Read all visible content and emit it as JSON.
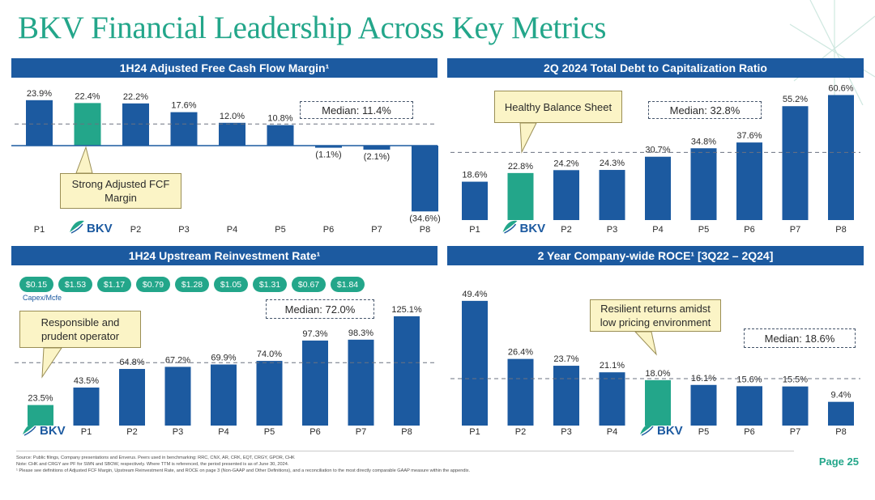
{
  "title": "BKV Financial Leadership Across Key Metrics",
  "colors": {
    "bar": "#1c5aa0",
    "highlight": "#23a68a",
    "header": "#1c5aa0",
    "title": "#23a68a",
    "callout_bg": "#fbf4c6"
  },
  "logo_text": "BKV",
  "page": "Page 25",
  "footnotes": [
    "Source: Public filings, Company presentations and Enverus. Peers used in benchmarking: RRC, CNX, AR, CRK, EQT, CRGY, GPOR, CHK",
    "Note: CHK and CRGY are PF for SWN and SBOW, respectively. Where TTM is referenced, the period presented is as of June 30, 2024.",
    "¹ Please see definitions of Adjusted FCF Margin, Upstream Reinvestment Rate, and ROCE on page 3 (Non-GAAP and Other Definitions), and a reconciliation to the most directly comparable GAAP measure within the appendix."
  ],
  "chart_data": [
    {
      "type": "bar",
      "title": "1H24 Adjusted Free Cash Flow Margin¹",
      "categories": [
        "P1",
        "BKV",
        "P2",
        "P3",
        "P4",
        "P5",
        "P6",
        "P7",
        "P8"
      ],
      "values": [
        23.9,
        22.4,
        22.2,
        17.6,
        12.0,
        10.8,
        -1.1,
        -2.1,
        -34.6
      ],
      "labels": [
        "23.9%",
        "22.4%",
        "22.2%",
        "17.6%",
        "12.0%",
        "10.8%",
        "(1.1%)",
        "(2.1%)",
        "(34.6%)"
      ],
      "highlight_index": 1,
      "median": 11.4,
      "median_label": "Median: 11.4%",
      "callout": "Strong Adjusted FCF Margin"
    },
    {
      "type": "bar",
      "title": "2Q 2024 Total Debt to Capitalization Ratio",
      "categories": [
        "P1",
        "BKV",
        "P2",
        "P3",
        "P4",
        "P5",
        "P6",
        "P7",
        "P8"
      ],
      "values": [
        18.6,
        22.8,
        24.2,
        24.3,
        30.7,
        34.8,
        37.6,
        55.2,
        60.6
      ],
      "labels": [
        "18.6%",
        "22.8%",
        "24.2%",
        "24.3%",
        "30.7%",
        "34.8%",
        "37.6%",
        "55.2%",
        "60.6%"
      ],
      "highlight_index": 1,
      "median": 32.8,
      "median_label": "Median: 32.8%",
      "callout": "Healthy Balance Sheet"
    },
    {
      "type": "bar",
      "title": "1H24 Upstream Reinvestment Rate¹",
      "categories": [
        "BKV",
        "P1",
        "P2",
        "P3",
        "P4",
        "P5",
        "P6",
        "P7",
        "P8"
      ],
      "values": [
        23.5,
        43.5,
        64.8,
        67.2,
        69.9,
        74.0,
        97.3,
        98.3,
        125.1
      ],
      "labels": [
        "23.5%",
        "43.5%",
        "64.8%",
        "67.2%",
        "69.9%",
        "74.0%",
        "97.3%",
        "98.3%",
        "125.1%"
      ],
      "highlight_index": 0,
      "median": 72.0,
      "median_label": "Median: 72.0%",
      "callout": "Responsible and prudent operator",
      "capex_label": "Capex/Mcfe",
      "capex_per_mcfe": [
        "$0.15",
        "$1.53",
        "$1.17",
        "$0.79",
        "$1.28",
        "$1.05",
        "$1.31",
        "$0.67",
        "$1.84"
      ]
    },
    {
      "type": "bar",
      "title": "2 Year Company-wide ROCE¹ [3Q22 – 2Q24]",
      "categories": [
        "P1",
        "P2",
        "P3",
        "P4",
        "BKV",
        "P5",
        "P6",
        "P7",
        "P8"
      ],
      "values": [
        49.4,
        26.4,
        23.7,
        21.1,
        18.0,
        16.1,
        15.6,
        15.5,
        9.4
      ],
      "labels": [
        "49.4%",
        "26.4%",
        "23.7%",
        "21.1%",
        "18.0%",
        "16.1%",
        "15.6%",
        "15.5%",
        "9.4%"
      ],
      "highlight_index": 4,
      "median": 18.6,
      "median_label": "Median: 18.6%",
      "callout": "Resilient returns amidst low pricing environment"
    }
  ]
}
